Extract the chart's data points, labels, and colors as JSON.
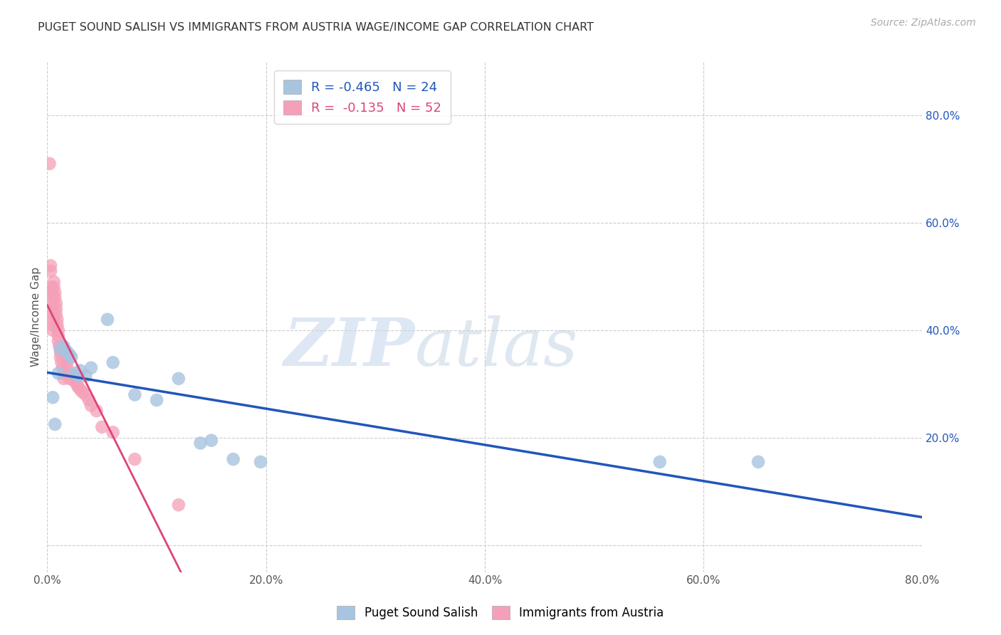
{
  "title": "PUGET SOUND SALISH VS IMMIGRANTS FROM AUSTRIA WAGE/INCOME GAP CORRELATION CHART",
  "source": "Source: ZipAtlas.com",
  "ylabel": "Wage/Income Gap",
  "xlim": [
    0.0,
    0.8
  ],
  "ylim": [
    -0.05,
    0.9
  ],
  "ytick_vals": [
    0.0,
    0.2,
    0.4,
    0.6,
    0.8
  ],
  "ytick_labels": [
    "",
    "20.0%",
    "40.0%",
    "60.0%",
    "80.0%"
  ],
  "xtick_vals": [
    0.0,
    0.2,
    0.4,
    0.6,
    0.8
  ],
  "xtick_labels": [
    "0.0%",
    "20.0%",
    "40.0%",
    "60.0%",
    "80.0%"
  ],
  "blue_label": "Puget Sound Salish",
  "pink_label": "Immigrants from Austria",
  "blue_R": -0.465,
  "blue_N": 24,
  "pink_R": -0.135,
  "pink_N": 52,
  "blue_color": "#a8c4e0",
  "pink_color": "#f4a0b8",
  "blue_line_color": "#2255bb",
  "pink_line_color": "#dd4477",
  "watermark_zip": "ZIP",
  "watermark_atlas": "atlas",
  "blue_scatter_x": [
    0.005,
    0.007,
    0.01,
    0.012,
    0.015,
    0.018,
    0.02,
    0.022,
    0.025,
    0.028,
    0.03,
    0.035,
    0.04,
    0.055,
    0.06,
    0.08,
    0.1,
    0.12,
    0.14,
    0.15,
    0.17,
    0.195,
    0.56,
    0.65
  ],
  "blue_scatter_y": [
    0.275,
    0.225,
    0.32,
    0.365,
    0.37,
    0.36,
    0.355,
    0.35,
    0.32,
    0.315,
    0.325,
    0.315,
    0.33,
    0.42,
    0.34,
    0.28,
    0.27,
    0.31,
    0.19,
    0.195,
    0.16,
    0.155,
    0.155,
    0.155
  ],
  "pink_scatter_x": [
    0.002,
    0.003,
    0.003,
    0.004,
    0.004,
    0.005,
    0.005,
    0.005,
    0.005,
    0.005,
    0.005,
    0.005,
    0.006,
    0.006,
    0.007,
    0.007,
    0.008,
    0.008,
    0.008,
    0.009,
    0.009,
    0.01,
    0.01,
    0.01,
    0.011,
    0.012,
    0.012,
    0.013,
    0.014,
    0.015,
    0.015,
    0.016,
    0.017,
    0.018,
    0.018,
    0.02,
    0.02,
    0.022,
    0.024,
    0.025,
    0.027,
    0.028,
    0.03,
    0.032,
    0.035,
    0.038,
    0.04,
    0.045,
    0.05,
    0.06,
    0.08,
    0.12
  ],
  "pink_scatter_y": [
    0.71,
    0.52,
    0.51,
    0.48,
    0.47,
    0.46,
    0.45,
    0.44,
    0.43,
    0.42,
    0.41,
    0.4,
    0.49,
    0.48,
    0.47,
    0.46,
    0.45,
    0.44,
    0.43,
    0.42,
    0.41,
    0.4,
    0.39,
    0.38,
    0.37,
    0.36,
    0.35,
    0.34,
    0.33,
    0.32,
    0.31,
    0.36,
    0.35,
    0.34,
    0.33,
    0.32,
    0.31,
    0.315,
    0.31,
    0.305,
    0.3,
    0.295,
    0.29,
    0.285,
    0.28,
    0.27,
    0.26,
    0.25,
    0.22,
    0.21,
    0.16,
    0.075
  ]
}
